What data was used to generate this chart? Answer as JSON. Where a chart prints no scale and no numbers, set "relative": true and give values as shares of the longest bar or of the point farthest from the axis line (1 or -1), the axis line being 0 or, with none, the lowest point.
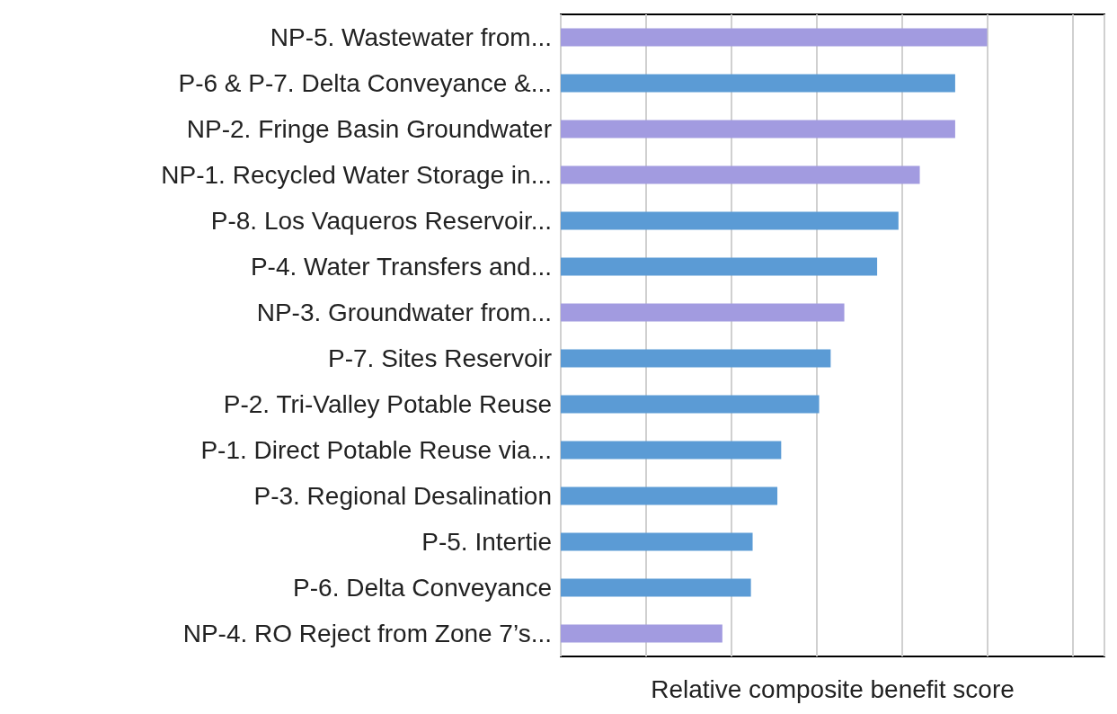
{
  "chart_data": {
    "type": "bar",
    "orientation": "horizontal",
    "relative": true,
    "xlabel": "Relative composite benefit score",
    "grid": "x",
    "categories": [
      "NP-5. Wastewater from...",
      "P-6 & P-7. Delta Conveyance &...",
      "NP-2. Fringe Basin Groundwater",
      "NP-1. Recycled Water Storage in...",
      "P-8. Los Vaqueros Reservoir...",
      "P-4. Water Transfers and...",
      "NP-3. Groundwater from...",
      "P-7. Sites Reservoir",
      "P-2. Tri-Valley Potable Reuse",
      "P-1. Direct Potable Reuse via...",
      "P-3. Regional Desalination",
      "P-5. Intertie",
      "P-6. Delta Conveyance",
      "NP-4. RO Reject from Zone 7’s..."
    ],
    "values": [
      1,
      0.925,
      0.925,
      0.842,
      0.792,
      0.742,
      0.665,
      0.633,
      0.606,
      0.517,
      0.508,
      0.45,
      0.446,
      0.379
    ],
    "colors": [
      "#a29be0",
      "#5b9bd5",
      "#a29be0",
      "#a29be0",
      "#5b9bd5",
      "#5b9bd5",
      "#a29be0",
      "#5b9bd5",
      "#5b9bd5",
      "#5b9bd5",
      "#5b9bd5",
      "#5b9bd5",
      "#5b9bd5",
      "#a29be0"
    ]
  }
}
